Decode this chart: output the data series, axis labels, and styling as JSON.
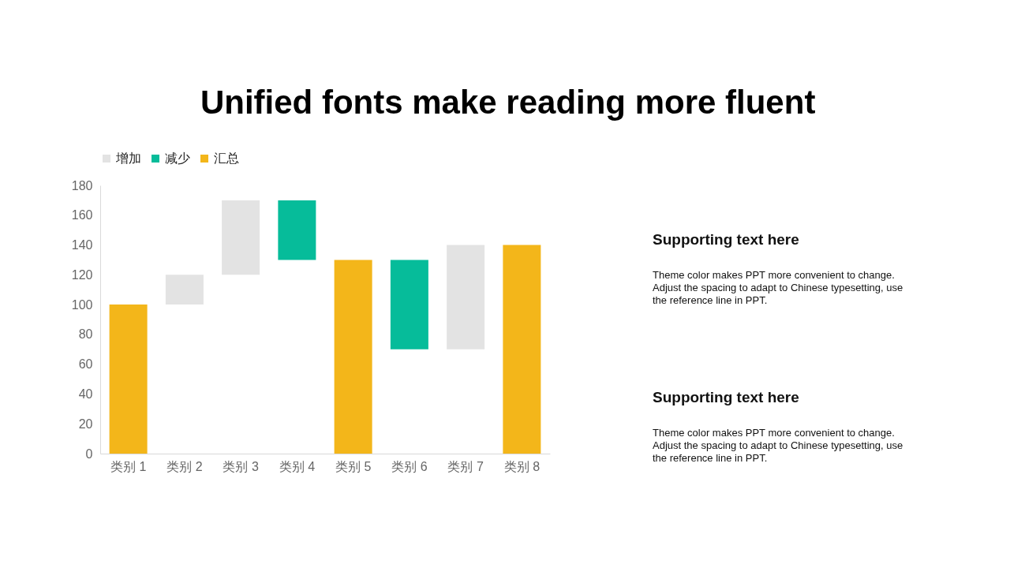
{
  "chart_data": {
    "type": "bar",
    "title": "Unified fonts make reading more fluent",
    "categories": [
      "类别 1",
      "类别 2",
      "类别 3",
      "类别 4",
      "类别 5",
      "类别 6",
      "类别 7",
      "类别 8"
    ],
    "series": [
      {
        "name": "增加",
        "color": "#e3e3e3",
        "values": [
          null,
          20,
          50,
          null,
          null,
          null,
          70,
          null
        ],
        "base": [
          null,
          100,
          120,
          null,
          null,
          null,
          70,
          null
        ]
      },
      {
        "name": "减少",
        "color": "#06bc9a",
        "values": [
          null,
          null,
          null,
          40,
          null,
          60,
          null,
          null
        ],
        "base": [
          null,
          null,
          null,
          130,
          null,
          70,
          null,
          null
        ]
      },
      {
        "name": "汇总",
        "color": "#f3b61a",
        "values": [
          100,
          null,
          null,
          null,
          130,
          null,
          null,
          140
        ],
        "base": [
          0,
          null,
          null,
          null,
          0,
          null,
          null,
          0
        ]
      }
    ],
    "ylim": [
      0,
      180
    ],
    "yticks": [
      0,
      20,
      40,
      60,
      80,
      100,
      120,
      140,
      160,
      180
    ],
    "grid": false,
    "legend": "top",
    "annotations": [
      "Supporting text here",
      "Theme  color makes PPT more convenient to change.\nAdjust the spacing to adapt to Chinese typesetting, use\nthe reference line in PPT.",
      "Supporting text here",
      "Theme  color makes PPT more convenient to change.\nAdjust the spacing to adapt to Chinese typesetting, use\nthe reference line in PPT."
    ]
  }
}
